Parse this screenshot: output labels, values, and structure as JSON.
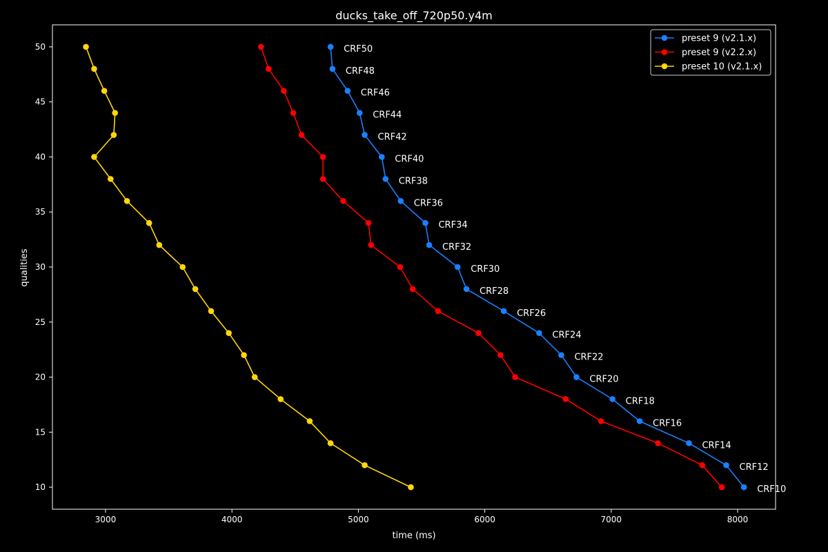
{
  "chart_data": {
    "type": "line",
    "title": "ducks_take_off_720p50.y4m",
    "xlabel": "time (ms)",
    "ylabel": "qualities",
    "xlim": [
      2580,
      8300
    ],
    "ylim": [
      8,
      52
    ],
    "xticks": [
      3000,
      4000,
      5000,
      6000,
      7000,
      8000
    ],
    "yticks": [
      10,
      15,
      20,
      25,
      30,
      35,
      40,
      45,
      50
    ],
    "grid": false,
    "legend_position": "top-right",
    "series": [
      {
        "name": "preset 9 (v2.1.x)",
        "color": "#1a80ff",
        "points": [
          {
            "x": 4780,
            "y": 50,
            "label": "CRF50"
          },
          {
            "x": 4795,
            "y": 48,
            "label": "CRF48"
          },
          {
            "x": 4915,
            "y": 46,
            "label": "CRF46"
          },
          {
            "x": 5010,
            "y": 44,
            "label": "CRF44"
          },
          {
            "x": 5050,
            "y": 42,
            "label": "CRF42"
          },
          {
            "x": 5185,
            "y": 40,
            "label": "CRF40"
          },
          {
            "x": 5215,
            "y": 38,
            "label": "CRF38"
          },
          {
            "x": 5335,
            "y": 36,
            "label": "CRF36"
          },
          {
            "x": 5530,
            "y": 34,
            "label": "CRF34"
          },
          {
            "x": 5560,
            "y": 32,
            "label": "CRF32"
          },
          {
            "x": 5785,
            "y": 30,
            "label": "CRF30"
          },
          {
            "x": 5855,
            "y": 28,
            "label": "CRF28"
          },
          {
            "x": 6150,
            "y": 26,
            "label": "CRF26"
          },
          {
            "x": 6430,
            "y": 24,
            "label": "CRF24"
          },
          {
            "x": 6605,
            "y": 22,
            "label": "CRF22"
          },
          {
            "x": 6725,
            "y": 20,
            "label": "CRF20"
          },
          {
            "x": 7010,
            "y": 18,
            "label": "CRF18"
          },
          {
            "x": 7225,
            "y": 16,
            "label": "CRF16"
          },
          {
            "x": 7615,
            "y": 14,
            "label": "CRF14"
          },
          {
            "x": 7910,
            "y": 12,
            "label": "CRF12"
          },
          {
            "x": 8050,
            "y": 10,
            "label": "CRF10"
          }
        ]
      },
      {
        "name": "preset 9 (v2.2.x)",
        "color": "#ff0000",
        "points": [
          {
            "x": 4230,
            "y": 50
          },
          {
            "x": 4290,
            "y": 48
          },
          {
            "x": 4410,
            "y": 46
          },
          {
            "x": 4485,
            "y": 44
          },
          {
            "x": 4550,
            "y": 42
          },
          {
            "x": 4720,
            "y": 40
          },
          {
            "x": 4720,
            "y": 38
          },
          {
            "x": 4880,
            "y": 36
          },
          {
            "x": 5080,
            "y": 34
          },
          {
            "x": 5100,
            "y": 32
          },
          {
            "x": 5330,
            "y": 30
          },
          {
            "x": 5430,
            "y": 28
          },
          {
            "x": 5630,
            "y": 26
          },
          {
            "x": 5950,
            "y": 24
          },
          {
            "x": 6125,
            "y": 22
          },
          {
            "x": 6240,
            "y": 20
          },
          {
            "x": 6640,
            "y": 18
          },
          {
            "x": 6920,
            "y": 16
          },
          {
            "x": 7370,
            "y": 14
          },
          {
            "x": 7720,
            "y": 12
          },
          {
            "x": 7875,
            "y": 10
          }
        ]
      },
      {
        "name": "preset 10 (v2.1.x)",
        "color": "#ffd60a",
        "points": [
          {
            "x": 2845,
            "y": 50
          },
          {
            "x": 2910,
            "y": 48
          },
          {
            "x": 2990,
            "y": 46
          },
          {
            "x": 3075,
            "y": 44
          },
          {
            "x": 3065,
            "y": 42
          },
          {
            "x": 2910,
            "y": 40
          },
          {
            "x": 3040,
            "y": 38
          },
          {
            "x": 3170,
            "y": 36
          },
          {
            "x": 3345,
            "y": 34
          },
          {
            "x": 3425,
            "y": 32
          },
          {
            "x": 3610,
            "y": 30
          },
          {
            "x": 3710,
            "y": 28
          },
          {
            "x": 3835,
            "y": 26
          },
          {
            "x": 3975,
            "y": 24
          },
          {
            "x": 4095,
            "y": 22
          },
          {
            "x": 4180,
            "y": 20
          },
          {
            "x": 4385,
            "y": 18
          },
          {
            "x": 4615,
            "y": 16
          },
          {
            "x": 4780,
            "y": 14
          },
          {
            "x": 5050,
            "y": 12
          },
          {
            "x": 5415,
            "y": 10
          }
        ]
      }
    ]
  }
}
